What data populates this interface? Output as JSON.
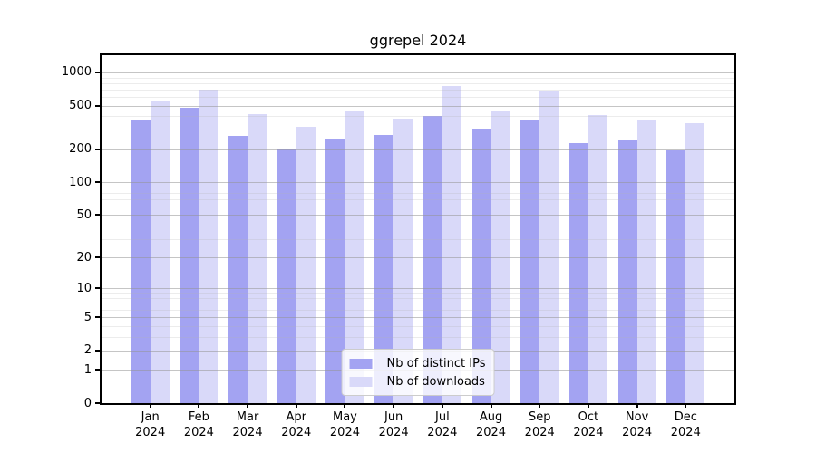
{
  "title": "ggrepel 2024",
  "chart_data": {
    "type": "bar",
    "title": "ggrepel 2024",
    "categories": [
      "Jan",
      "Feb",
      "Mar",
      "Apr",
      "May",
      "Jun",
      "Jul",
      "Aug",
      "Sep",
      "Oct",
      "Nov",
      "Dec"
    ],
    "category_year": "2024",
    "series": [
      {
        "name": "Nb of distinct IPs",
        "color": "#a3a3f2",
        "values": [
          375,
          480,
          265,
          198,
          250,
          270,
          400,
          310,
          365,
          227,
          242,
          196
        ]
      },
      {
        "name": "Nb of downloads",
        "color": "#d9d9f9",
        "values": [
          560,
          700,
          420,
          320,
          440,
          380,
          750,
          440,
          690,
          408,
          376,
          346
        ]
      }
    ],
    "yticks": [
      0,
      1,
      2,
      5,
      10,
      20,
      50,
      100,
      200,
      500,
      1000
    ],
    "minor_yticks": [
      3,
      4,
      6,
      7,
      8,
      9,
      30,
      40,
      60,
      70,
      80,
      90,
      300,
      400,
      600,
      700,
      800,
      900
    ],
    "scale": "log1p",
    "ylim": [
      0,
      1433
    ],
    "grid": "on",
    "legend_position": "lower center"
  }
}
